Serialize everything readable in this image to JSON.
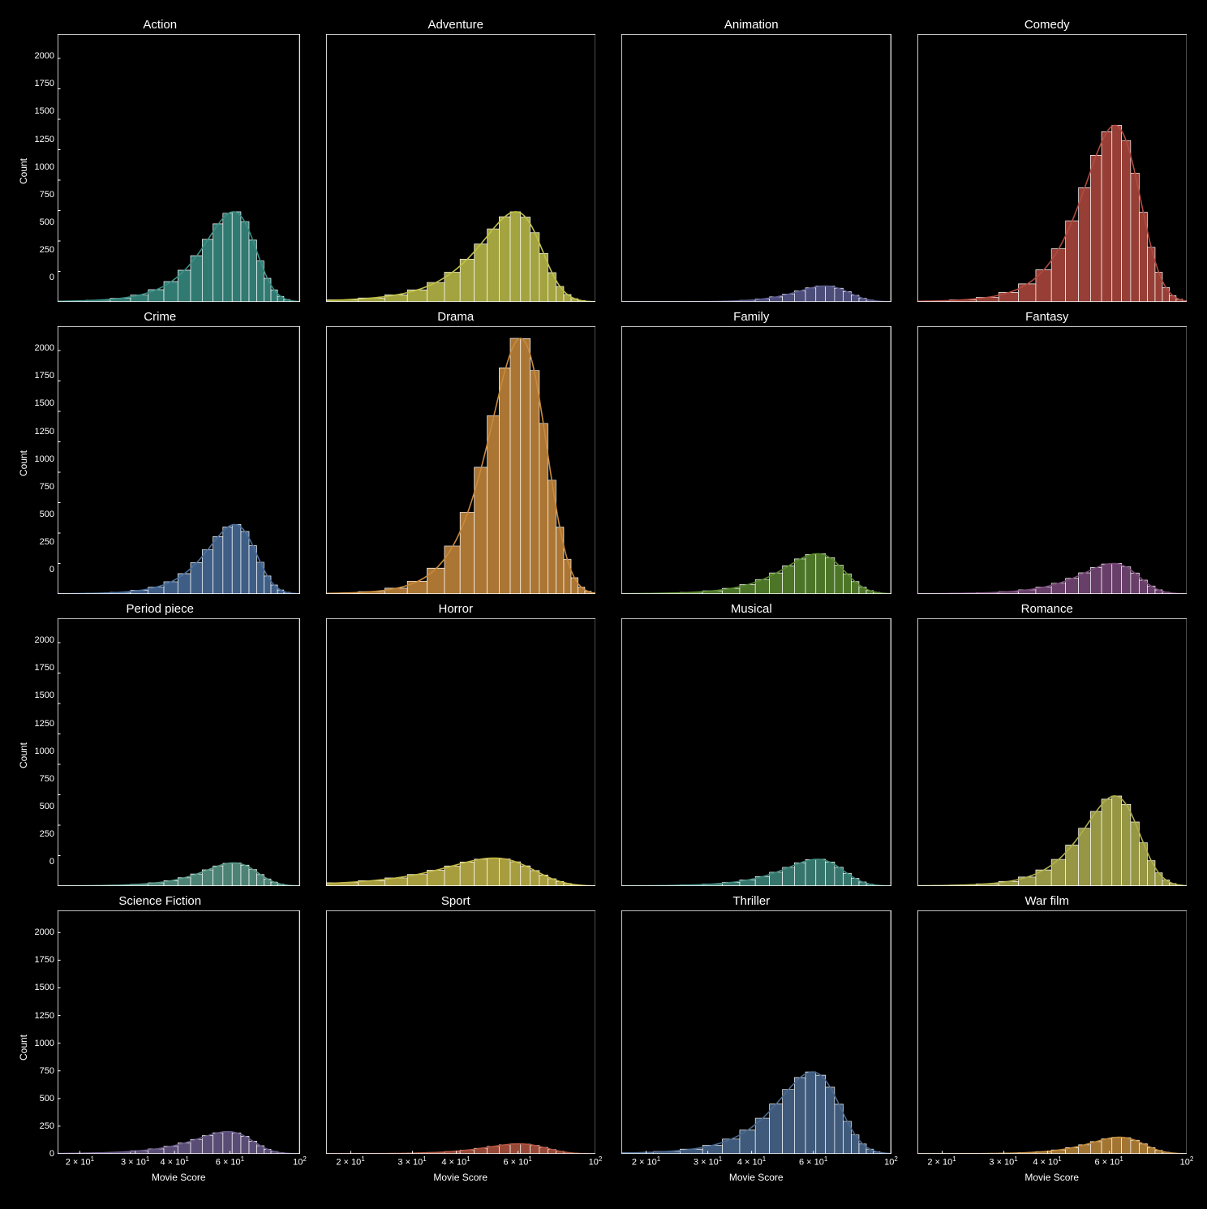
{
  "layout": {
    "rows": 4,
    "cols": 4
  },
  "background_color": "#000000",
  "text_color": "#ffffff",
  "panel_bg": "#000000",
  "frame_color": "#ffffff",
  "x_scale": "log",
  "x_min": 17,
  "x_max": 100,
  "x_ticks": [
    {
      "v": 20,
      "label_html": "2 × 10<sup>1</sup>"
    },
    {
      "v": 30,
      "label_html": "3 × 10<sup>1</sup>"
    },
    {
      "v": 40,
      "label_html": "4 × 10<sup>1</sup>"
    },
    {
      "v": 60,
      "label_html": "6 × 10<sup>1</sup>"
    },
    {
      "v": 100,
      "label_html": "10<sup>2</sup>"
    }
  ],
  "x_label": "Movie Score",
  "y_max": 2200,
  "y_ticks": [
    0,
    250,
    500,
    750,
    1000,
    1250,
    1500,
    1750,
    2000
  ],
  "y_label": "Count",
  "bin_edges": [
    17,
    21,
    25,
    29,
    33,
    37,
    41,
    45,
    49,
    53,
    57,
    61,
    65,
    69,
    73,
    77,
    81,
    85,
    89,
    93,
    97,
    100
  ],
  "panels": [
    {
      "title": "Action",
      "color": "#3a8f86",
      "peak": 740,
      "mode": 70,
      "spread": 16,
      "skew": -0.8
    },
    {
      "title": "Adventure",
      "color": "#c0c04a",
      "peak": 740,
      "mode": 68,
      "spread": 17,
      "skew": -0.9
    },
    {
      "title": "Animation",
      "color": "#5a5a8f",
      "peak": 130,
      "mode": 72,
      "spread": 14,
      "skew": -0.6
    },
    {
      "title": "Comedy",
      "color": "#b24a3f",
      "peak": 1450,
      "mode": 70,
      "spread": 15,
      "skew": -0.65
    },
    {
      "title": "Crime",
      "color": "#4a6f9d",
      "peak": 570,
      "mode": 70,
      "spread": 15,
      "skew": -0.75
    },
    {
      "title": "Drama",
      "color": "#c98a3c",
      "peak": 2100,
      "mode": 68,
      "spread": 14,
      "skew": -0.55
    },
    {
      "title": "Family",
      "color": "#5a8a2f",
      "peak": 330,
      "mode": 70,
      "spread": 16,
      "skew": -0.7
    },
    {
      "title": "Fantasy",
      "color": "#7a4a7a",
      "peak": 250,
      "mode": 70,
      "spread": 16,
      "skew": -0.8
    },
    {
      "title": "Period piece",
      "color": "#5a9a8a",
      "peak": 190,
      "mode": 70,
      "spread": 16,
      "skew": -0.7
    },
    {
      "title": "Horror",
      "color": "#c4b84a",
      "peak": 230,
      "mode": 60,
      "spread": 18,
      "skew": -0.5
    },
    {
      "title": "Musical",
      "color": "#3f8a7f",
      "peak": 220,
      "mode": 70,
      "spread": 16,
      "skew": -0.75
    },
    {
      "title": "Romance",
      "color": "#b0b050",
      "peak": 740,
      "mode": 70,
      "spread": 15,
      "skew": -0.7
    },
    {
      "title": "Science Fiction",
      "color": "#6a5a8a",
      "peak": 200,
      "mode": 68,
      "spread": 17,
      "skew": -0.8
    },
    {
      "title": "Sport",
      "color": "#b25540",
      "peak": 90,
      "mode": 68,
      "spread": 15,
      "skew": -0.6
    },
    {
      "title": "Thriller",
      "color": "#4a6a90",
      "peak": 740,
      "mode": 68,
      "spread": 16,
      "skew": -0.7
    },
    {
      "title": "War film",
      "color": "#c08a3c",
      "peak": 150,
      "mode": 72,
      "spread": 15,
      "skew": -0.7
    }
  ],
  "fontsize_title": 15,
  "fontsize_label": 12,
  "fontsize_tick": 11,
  "bar_edge_color": "#ffffff",
  "bar_opacity": 0.85
}
